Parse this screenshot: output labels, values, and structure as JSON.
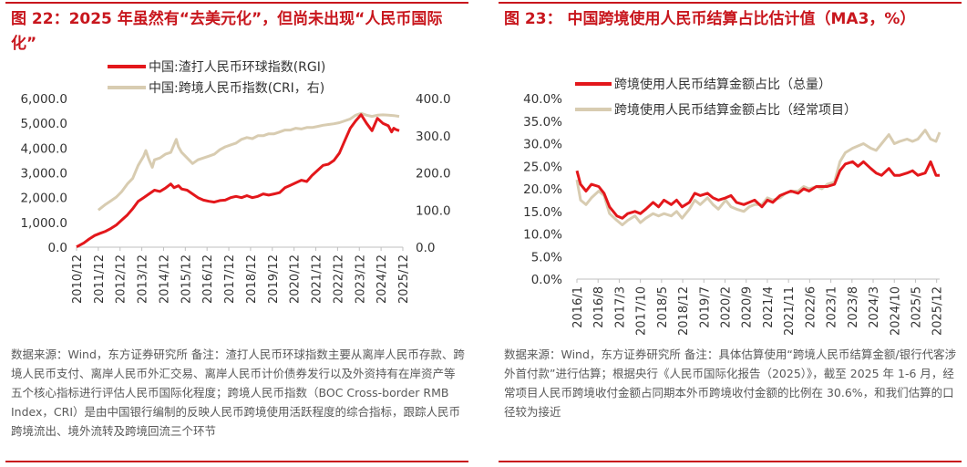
{
  "colors": {
    "accent": "#c8161d",
    "series_red": "#e3171b",
    "series_beige": "#d8ccb1",
    "axis": "#d0d0d0",
    "text": "#333333"
  },
  "panels": [
    {
      "title": "图 22：2025 年虽然有“去美元化”，但尚未出现“人民币国际化”",
      "note": "数据来源：Wind，东方证券研究所 备注：渣打人民币环球指数主要从离岸人民币存款、跨境人民币支付、离岸人民币外汇交易、离岸人民币计价债券发行以及外资持有在岸资产等五个核心指标进行评估人民币国际化程度；跨境人民币指数（BOC Cross-border RMB Index，CRI）是由中国银行编制的反映人民币跨境使用活跃程度的综合指标，跟踪人民币跨境流出、境外流转及跨境回流三个环节"
    },
    {
      "title": "图 23：  中国跨境使用人民币结算占比估计值（MA3，%）",
      "note": "数据来源：Wind，东方证券研究所 备注：具体估算使用“跨境人民币结算金额/银行代客涉外首付款”进行估算；根据央行《人民币国际化报告（2025）》，截至 2025 年 1-6 月，经常项目人民币跨境收付金额占同期本外币跨境收付金额的比例在 30.6%，和我们估算的口径较为接近"
    }
  ],
  "chart_data": [
    {
      "type": "line",
      "title": "",
      "x_ticks": [
        "2010/12",
        "2011/12",
        "2012/12",
        "2013/12",
        "2014/12",
        "2015/12",
        "2016/12",
        "2017/12",
        "2018/12",
        "2019/12",
        "2020/12",
        "2021/12",
        "2022/12",
        "2023/12",
        "2024/12",
        "2025/12"
      ],
      "xlim": [
        2010.917,
        2025.917
      ],
      "ylim_left": [
        0,
        6000
      ],
      "ylim_right": [
        0,
        400
      ],
      "y_ticks_left": [
        "0.0",
        "1,000.0",
        "2,000.0",
        "3,000.0",
        "4,000.0",
        "5,000.0",
        "6,000.0"
      ],
      "y_ticks_right": [
        "0.0",
        "100.0",
        "200.0",
        "300.0",
        "400.0"
      ],
      "legend_position": "top",
      "series": [
        {
          "name": "中国:渣打人民币环球指数(RGI)",
          "axis": "left",
          "color": "#e3171b",
          "x": [
            2010.917,
            2011.25,
            2011.5,
            2011.75,
            2012.0,
            2012.25,
            2012.5,
            2012.75,
            2013.0,
            2013.25,
            2013.5,
            2013.75,
            2014.0,
            2014.25,
            2014.5,
            2014.75,
            2015.0,
            2015.25,
            2015.4,
            2015.6,
            2015.75,
            2016.0,
            2016.25,
            2016.5,
            2016.75,
            2017.0,
            2017.25,
            2017.5,
            2017.75,
            2018.0,
            2018.25,
            2018.5,
            2018.75,
            2019.0,
            2019.25,
            2019.5,
            2019.75,
            2020.0,
            2020.25,
            2020.5,
            2020.75,
            2021.0,
            2021.25,
            2021.5,
            2021.75,
            2022.0,
            2022.25,
            2022.5,
            2022.75,
            2023.0,
            2023.25,
            2023.5,
            2023.75,
            2024.0,
            2024.25,
            2024.5,
            2024.75,
            2025.0,
            2025.25,
            2025.4,
            2025.5,
            2025.6,
            2025.75
          ],
          "y": [
            10,
            170,
            330,
            470,
            560,
            640,
            760,
            900,
            1100,
            1300,
            1550,
            1850,
            2000,
            2150,
            2300,
            2250,
            2380,
            2550,
            2400,
            2480,
            2350,
            2300,
            2150,
            2000,
            1900,
            1850,
            1820,
            1880,
            1900,
            2000,
            2050,
            2000,
            2080,
            2000,
            2050,
            2150,
            2100,
            2150,
            2200,
            2400,
            2500,
            2600,
            2700,
            2650,
            2900,
            3100,
            3300,
            3350,
            3500,
            3800,
            4300,
            4800,
            5100,
            5350,
            5000,
            4700,
            5200,
            5000,
            4900,
            4650,
            4800,
            4750,
            4700
          ]
        },
        {
          "name": "中国:跨境人民币指数(CRI，右)",
          "axis": "right",
          "color": "#d8ccb1",
          "x": [
            2011.917,
            2012.25,
            2012.5,
            2012.75,
            2013.0,
            2013.25,
            2013.5,
            2013.75,
            2014.0,
            2014.1,
            2014.25,
            2014.4,
            2014.5,
            2014.75,
            2015.0,
            2015.25,
            2015.5,
            2015.6,
            2015.75,
            2016.0,
            2016.25,
            2016.5,
            2016.75,
            2017.0,
            2017.25,
            2017.5,
            2017.75,
            2018.0,
            2018.25,
            2018.5,
            2018.75,
            2019.0,
            2019.25,
            2019.5,
            2019.75,
            2020.0,
            2020.25,
            2020.5,
            2020.75,
            2021.0,
            2021.25,
            2021.5,
            2021.75,
            2022.0,
            2022.25,
            2022.5,
            2022.75,
            2023.0,
            2023.25,
            2023.5,
            2023.75,
            2024.0,
            2024.25,
            2024.5,
            2024.75,
            2025.0,
            2025.25,
            2025.5,
            2025.75
          ],
          "y": [
            100,
            115,
            125,
            135,
            150,
            170,
            185,
            220,
            245,
            260,
            235,
            215,
            235,
            240,
            250,
            255,
            290,
            270,
            255,
            240,
            225,
            235,
            240,
            245,
            250,
            262,
            270,
            275,
            280,
            290,
            295,
            292,
            300,
            300,
            305,
            305,
            310,
            315,
            315,
            320,
            318,
            322,
            322,
            325,
            328,
            330,
            332,
            335,
            340,
            345,
            355,
            360,
            355,
            352,
            355,
            356,
            355,
            354,
            352
          ]
        }
      ]
    },
    {
      "type": "line",
      "title": "",
      "x_ticks": [
        "2016/1",
        "2016/8",
        "2017/3",
        "2017/10",
        "2018/5",
        "2018/12",
        "2019/7",
        "2020/2",
        "2020/9",
        "2021/4",
        "2021/11",
        "2022/6",
        "2023/1",
        "2023/8",
        "2024/3",
        "2024/10",
        "2025/5",
        "2025/12"
      ],
      "xlim": [
        2016.0,
        2026.0
      ],
      "ylim": [
        0,
        40
      ],
      "y_ticks": [
        "0.0%",
        "5.0%",
        "10.0%",
        "15.0%",
        "20.0%",
        "25.0%",
        "30.0%",
        "35.0%",
        "40.0%"
      ],
      "legend_position": "top",
      "series": [
        {
          "name": "跨境使用人民币结算金额占比（总量）",
          "color": "#e3171b",
          "x": [
            2016.0,
            2016.1,
            2016.25,
            2016.4,
            2016.6,
            2016.75,
            2016.9,
            2017.1,
            2017.25,
            2017.4,
            2017.6,
            2017.75,
            2017.9,
            2018.1,
            2018.25,
            2018.4,
            2018.6,
            2018.75,
            2018.9,
            2019.1,
            2019.25,
            2019.4,
            2019.6,
            2019.75,
            2019.9,
            2020.1,
            2020.25,
            2020.4,
            2020.6,
            2020.75,
            2020.9,
            2021.1,
            2021.25,
            2021.4,
            2021.6,
            2021.75,
            2021.9,
            2022.1,
            2022.25,
            2022.4,
            2022.6,
            2022.75,
            2022.9,
            2023.1,
            2023.25,
            2023.4,
            2023.6,
            2023.75,
            2023.9,
            2024.1,
            2024.25,
            2024.4,
            2024.6,
            2024.75,
            2024.9,
            2025.1,
            2025.25,
            2025.4,
            2025.6,
            2025.75,
            2025.9,
            2026.0
          ],
          "y": [
            24.0,
            21.0,
            19.5,
            21.0,
            20.5,
            19.0,
            16.0,
            14.0,
            13.5,
            14.5,
            15.0,
            14.5,
            15.5,
            17.0,
            16.0,
            17.5,
            16.5,
            17.5,
            16.0,
            17.0,
            19.0,
            18.5,
            19.0,
            18.0,
            17.5,
            18.0,
            18.5,
            17.0,
            16.5,
            17.0,
            17.5,
            16.0,
            17.5,
            17.0,
            18.5,
            19.0,
            19.5,
            19.0,
            20.0,
            19.5,
            20.5,
            20.5,
            20.5,
            21.0,
            24.0,
            25.5,
            26.0,
            25.0,
            26.0,
            24.5,
            23.5,
            23.0,
            24.5,
            23.0,
            23.0,
            23.5,
            24.0,
            23.0,
            23.5,
            26.0,
            23.0,
            23.0
          ]
        },
        {
          "name": "跨境使用人民币结算金额占比（经常项目）",
          "color": "#d8ccb1",
          "x": [
            2016.0,
            2016.1,
            2016.25,
            2016.4,
            2016.6,
            2016.75,
            2016.9,
            2017.1,
            2017.25,
            2017.4,
            2017.6,
            2017.75,
            2017.9,
            2018.1,
            2018.25,
            2018.4,
            2018.6,
            2018.75,
            2018.9,
            2019.1,
            2019.25,
            2019.4,
            2019.6,
            2019.75,
            2019.9,
            2020.1,
            2020.25,
            2020.4,
            2020.6,
            2020.75,
            2020.9,
            2021.1,
            2021.25,
            2021.4,
            2021.6,
            2021.75,
            2021.9,
            2022.1,
            2022.25,
            2022.4,
            2022.6,
            2022.75,
            2022.9,
            2023.1,
            2023.25,
            2023.4,
            2023.6,
            2023.75,
            2023.9,
            2024.1,
            2024.25,
            2024.4,
            2024.6,
            2024.75,
            2024.9,
            2025.1,
            2025.25,
            2025.4,
            2025.6,
            2025.75,
            2025.9,
            2026.0
          ],
          "y": [
            22.0,
            17.5,
            16.5,
            18.0,
            19.5,
            18.5,
            14.5,
            13.0,
            12.0,
            13.0,
            14.0,
            12.5,
            13.5,
            14.5,
            14.0,
            14.5,
            14.0,
            15.0,
            13.5,
            15.5,
            17.5,
            16.5,
            18.0,
            16.5,
            15.5,
            17.5,
            16.0,
            15.5,
            15.0,
            16.0,
            16.5,
            16.5,
            18.0,
            17.5,
            18.0,
            19.0,
            19.5,
            19.5,
            20.5,
            20.0,
            20.5,
            20.0,
            21.0,
            21.5,
            26.0,
            28.0,
            29.0,
            29.5,
            30.0,
            29.0,
            28.5,
            30.0,
            32.0,
            30.0,
            30.5,
            31.0,
            30.5,
            31.0,
            33.0,
            31.0,
            30.5,
            32.5
          ]
        }
      ]
    }
  ]
}
